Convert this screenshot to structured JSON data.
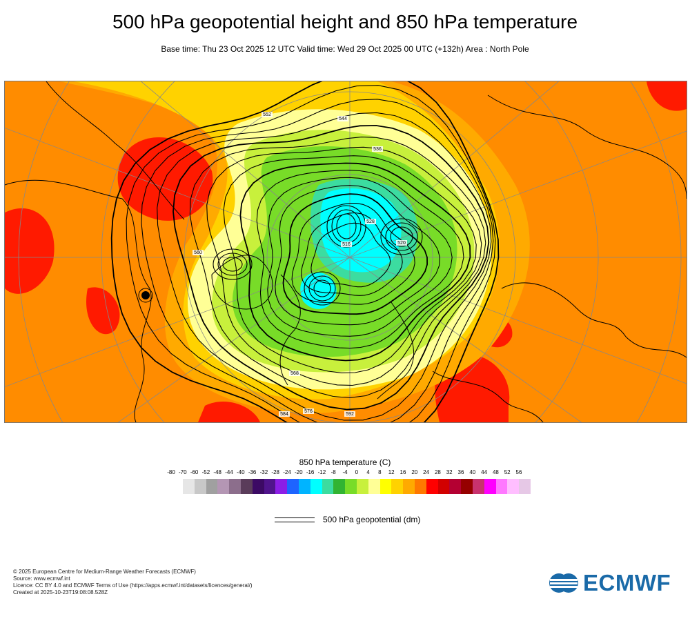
{
  "title": "500 hPa geopotential height and 850 hPa temperature",
  "subtitle": "Base time: Thu 23 Oct 2025 12 UTC Valid time: Wed 29 Oct 2025 00 UTC (+132h) Area : North Pole",
  "legend": {
    "title": "850 hPa temperature (C)",
    "ticks": [
      "-80",
      "-70",
      "-60",
      "-52",
      "-48",
      "-44",
      "-40",
      "-36",
      "-32",
      "-28",
      "-24",
      "-20",
      "-16",
      "-12",
      "-8",
      "-4",
      "0",
      "4",
      "8",
      "12",
      "16",
      "20",
      "24",
      "28",
      "32",
      "36",
      "40",
      "44",
      "48",
      "52",
      "56"
    ],
    "colors": [
      "#e6e6e6",
      "#c8c8c8",
      "#a0a0a0",
      "#b496b4",
      "#8c6e8c",
      "#5a3c5a",
      "#3c0a64",
      "#50148c",
      "#8c1ee6",
      "#1e64ff",
      "#00b4ff",
      "#00ffff",
      "#3cdca0",
      "#32b432",
      "#78dc28",
      "#c8f03c",
      "#ffff96",
      "#ffff00",
      "#ffd200",
      "#ffaa00",
      "#ff7800",
      "#ff0000",
      "#d20000",
      "#b40032",
      "#960000",
      "#c8326e",
      "#ff00ff",
      "#ff78ff",
      "#ffbeff",
      "#e6c8e6"
    ],
    "contour_label": "500 hPa geopotential (dm)"
  },
  "map_labels": [
    "516",
    "520",
    "528",
    "536",
    "544",
    "552",
    "560",
    "568",
    "576",
    "584",
    "592"
  ],
  "footer": {
    "line1": "© 2025 European Centre for Medium-Range Weather Forecasts (ECMWF)",
    "line2": "Source: www.ecmwf.int",
    "line3": "Licence: CC BY 4.0 and ECMWF Terms of Use (https://apps.ecmwf.int/datasets/licences/general/)",
    "line4": "Created at 2025-10-23T19:08:08.528Z"
  },
  "logo_text": "ECMWF"
}
